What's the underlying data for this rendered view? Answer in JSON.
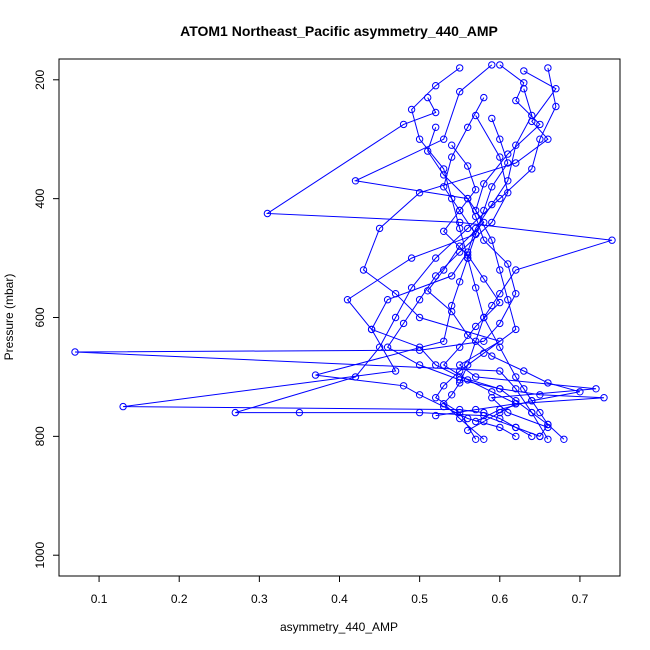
{
  "chart_data": {
    "type": "scatter",
    "title": "ATOM1 Northeast_Pacific asymmetry_440_AMP",
    "xlabel": "asymmetry_440_AMP",
    "ylabel": "Pressure (mbar)",
    "xlim": [
      0.05,
      0.75
    ],
    "ylim": [
      1035,
      165
    ],
    "y_reversed": true,
    "x_ticks": [
      0.1,
      0.2,
      0.3,
      0.4,
      0.5,
      0.6,
      0.7
    ],
    "x_tick_labels": [
      "0.1",
      "0.2",
      "0.3",
      "0.4",
      "0.5",
      "0.6",
      "0.7"
    ],
    "y_ticks": [
      200,
      400,
      600,
      800,
      1000
    ],
    "y_tick_labels": [
      "200",
      "400",
      "600",
      "800",
      "1000"
    ],
    "marker": "open-circle",
    "connect_points": true,
    "grid": false,
    "colors": {
      "series": "#0000ff",
      "axis": "#000000",
      "background": "#ffffff"
    },
    "series": [
      {
        "x": [
          0.55,
          0.52,
          0.49,
          0.5,
          0.53,
          0.54,
          0.55,
          0.56,
          0.57,
          0.58,
          0.6,
          0.62,
          0.63,
          0.64,
          0.65,
          0.66,
          0.65
        ],
        "y": [
          180,
          210,
          250,
          300,
          350,
          400,
          450,
          500,
          550,
          600,
          650,
          700,
          720,
          740,
          760,
          780,
          800
        ]
      },
      {
        "x": [
          0.6,
          0.63,
          0.62,
          0.65,
          0.61,
          0.58,
          0.57,
          0.59,
          0.6,
          0.61,
          0.62,
          0.58,
          0.55,
          0.53,
          0.52,
          0.55,
          0.57
        ],
        "y": [
          175,
          205,
          235,
          275,
          325,
          375,
          420,
          470,
          520,
          570,
          620,
          660,
          690,
          715,
          735,
          760,
          805
        ]
      },
      {
        "x": [
          0.59,
          0.55,
          0.53,
          0.42,
          0.56,
          0.57,
          0.58,
          0.61,
          0.62,
          0.6,
          0.58,
          0.5,
          0.07,
          0.6,
          0.62,
          0.64,
          0.66
        ],
        "y": [
          175,
          220,
          300,
          370,
          400,
          430,
          470,
          510,
          560,
          610,
          640,
          655,
          658,
          690,
          720,
          760,
          805
        ]
      },
      {
        "x": [
          0.51,
          0.52,
          0.48,
          0.31,
          0.55,
          0.74,
          0.62,
          0.6,
          0.59,
          0.58,
          0.57,
          0.56,
          0.55,
          0.54,
          0.53,
          0.55,
          0.58
        ],
        "y": [
          230,
          255,
          275,
          425,
          440,
          470,
          520,
          560,
          580,
          600,
          640,
          680,
          710,
          730,
          745,
          770,
          805
        ]
      },
      {
        "x": [
          0.63,
          0.67,
          0.64,
          0.66,
          0.62,
          0.5,
          0.45,
          0.43,
          0.47,
          0.5,
          0.6,
          0.55,
          0.57,
          0.72,
          0.59,
          0.61,
          0.66
        ],
        "y": [
          185,
          215,
          270,
          300,
          340,
          390,
          450,
          520,
          560,
          600,
          640,
          680,
          700,
          720,
          735,
          760,
          785
        ]
      },
      {
        "x": [
          0.58,
          0.56,
          0.54,
          0.53,
          0.55,
          0.57,
          0.49,
          0.41,
          0.44,
          0.5,
          0.52,
          0.55,
          0.6,
          0.62,
          0.64,
          0.66,
          0.68
        ],
        "y": [
          230,
          280,
          330,
          380,
          420,
          460,
          500,
          570,
          620,
          650,
          680,
          700,
          720,
          740,
          760,
          780,
          805
        ]
      },
      {
        "x": [
          0.59,
          0.6,
          0.61,
          0.59,
          0.58,
          0.57,
          0.56,
          0.55,
          0.54,
          0.53,
          0.37,
          0.48,
          0.5,
          0.53,
          0.56,
          0.6,
          0.62
        ],
        "y": [
          265,
          300,
          340,
          380,
          420,
          460,
          500,
          540,
          580,
          640,
          697,
          715,
          730,
          750,
          770,
          785,
          800
        ]
      },
      {
        "x": [
          0.63,
          0.64,
          0.62,
          0.61,
          0.59,
          0.57,
          0.56,
          0.54,
          0.46,
          0.44,
          0.47,
          0.13,
          0.55,
          0.58,
          0.6,
          0.62,
          0.65
        ],
        "y": [
          215,
          260,
          310,
          370,
          410,
          450,
          490,
          530,
          570,
          620,
          690,
          750,
          755,
          760,
          770,
          785,
          800
        ]
      },
      {
        "x": [
          0.66,
          0.67,
          0.65,
          0.64,
          0.6,
          0.56,
          0.52,
          0.49,
          0.47,
          0.45,
          0.42,
          0.27,
          0.35,
          0.5,
          0.58,
          0.62,
          0.64
        ],
        "y": [
          180,
          245,
          300,
          350,
          400,
          450,
          500,
          550,
          600,
          650,
          700,
          760,
          760,
          760,
          765,
          785,
          800
        ]
      },
      {
        "x": [
          0.57,
          0.6,
          0.61,
          0.59,
          0.55,
          0.52,
          0.5,
          0.48,
          0.46,
          0.5,
          0.55,
          0.6,
          0.65,
          0.73,
          0.62,
          0.57,
          0.52
        ],
        "y": [
          260,
          330,
          390,
          440,
          490,
          530,
          570,
          610,
          650,
          680,
          705,
          720,
          730,
          735,
          745,
          755,
          765
        ]
      },
      {
        "x": [
          0.52,
          0.51,
          0.53,
          0.56,
          0.58,
          0.55,
          0.53,
          0.51,
          0.54,
          0.56,
          0.59,
          0.63,
          0.66,
          0.7,
          0.64,
          0.6,
          0.57
        ],
        "y": [
          280,
          320,
          360,
          400,
          440,
          480,
          520,
          555,
          590,
          630,
          665,
          690,
          710,
          725,
          740,
          755,
          775
        ]
      },
      {
        "x": [
          0.54,
          0.56,
          0.57,
          0.55,
          0.53,
          0.56,
          0.58,
          0.6,
          0.57,
          0.55,
          0.53,
          0.56,
          0.59,
          0.62,
          0.6,
          0.58,
          0.56
        ],
        "y": [
          310,
          345,
          385,
          420,
          455,
          495,
          535,
          575,
          615,
          650,
          680,
          705,
          725,
          745,
          760,
          775,
          790
        ]
      }
    ]
  }
}
